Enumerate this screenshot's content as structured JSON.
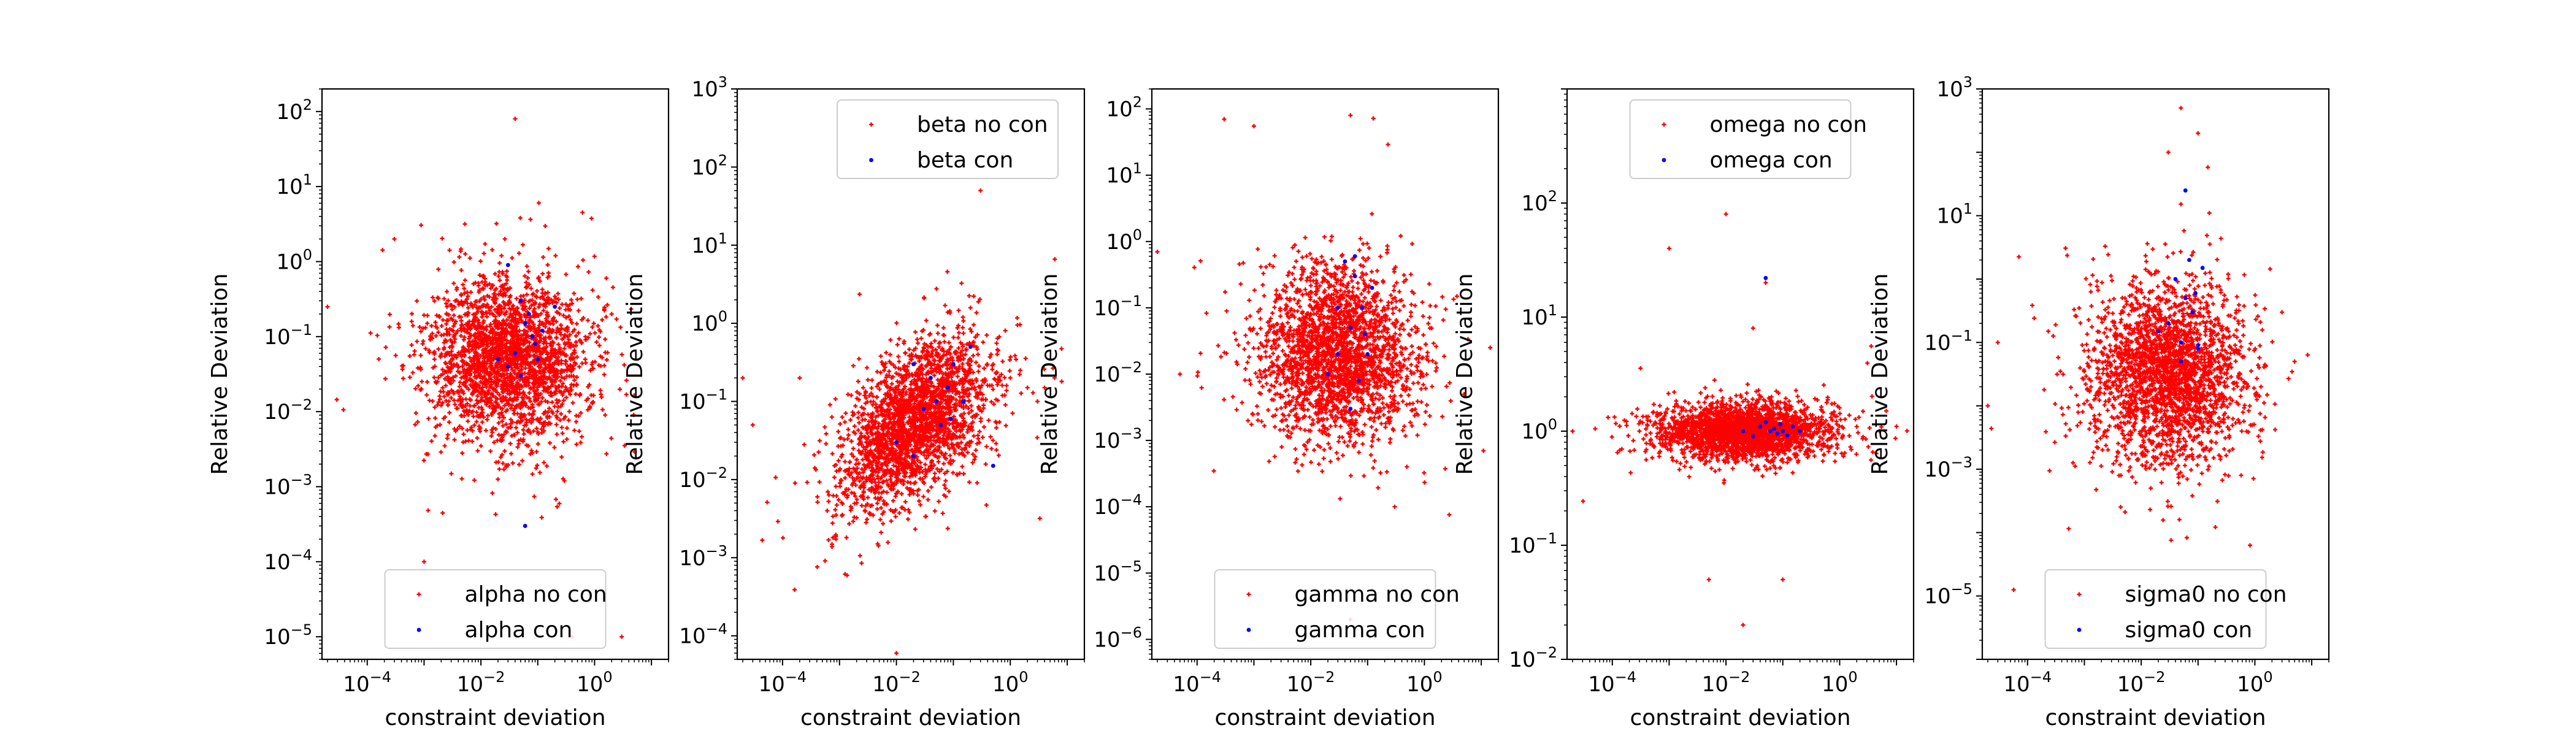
{
  "chart_data": [
    {
      "type": "scatter",
      "xlabel": "constraint deviation",
      "ylabel": "Relative Deviation",
      "x_scale": "log",
      "y_scale": "log",
      "xlim": [
        1.6e-05,
        20
      ],
      "ylim": [
        5e-06,
        200
      ],
      "xticks": [
        {
          "v": 0.0001,
          "b": "10",
          "e": "−4"
        },
        {
          "v": 0.01,
          "b": "10",
          "e": "−2"
        },
        {
          "v": 1,
          "b": "10",
          "e": "0"
        }
      ],
      "yticks": [
        {
          "v": 1e-05,
          "b": "10",
          "e": "−5"
        },
        {
          "v": 0.0001,
          "b": "10",
          "e": "−4"
        },
        {
          "v": 0.001,
          "b": "10",
          "e": "−3"
        },
        {
          "v": 0.01,
          "b": "10",
          "e": "−2"
        },
        {
          "v": 0.1,
          "b": "10",
          "e": "−1"
        },
        {
          "v": 1,
          "b": "10",
          "e": "0"
        },
        {
          "v": 10,
          "b": "10",
          "e": "1"
        },
        {
          "v": 100,
          "b": "10",
          "e": "2"
        }
      ],
      "legend_loc": "lower-center",
      "cloud": {
        "cx": 0.03,
        "cy": 0.05,
        "sx": 0.7,
        "sy": 0.55,
        "rho": 0.0,
        "n": 2400,
        "tail": 0.02
      },
      "series": [
        {
          "name": "alpha no con",
          "color": "#ff0000",
          "marker": "plus",
          "extra_points": [
            [
              0.04,
              80
            ],
            [
              0.0003,
              2
            ],
            [
              2e-05,
              0.25
            ],
            [
              0.4,
              1e-05
            ],
            [
              3,
              1e-05
            ],
            [
              2,
              0.2
            ],
            [
              0.001,
              0.0001
            ]
          ]
        },
        {
          "name": "alpha con",
          "color": "#0000ff",
          "marker": "dot",
          "points": [
            [
              0.05,
              0.3
            ],
            [
              0.06,
              0.15
            ],
            [
              0.08,
              0.1
            ],
            [
              0.04,
              0.06
            ],
            [
              0.1,
              0.05
            ],
            [
              0.03,
              0.04
            ],
            [
              0.07,
              0.2
            ],
            [
              0.09,
              0.08
            ],
            [
              0.02,
              0.05
            ],
            [
              0.12,
              0.12
            ],
            [
              0.05,
              0.03
            ],
            [
              0.2,
              0.25
            ],
            [
              0.06,
              0.0003
            ],
            [
              0.03,
              0.9
            ]
          ]
        }
      ]
    },
    {
      "type": "scatter",
      "xlabel": "constraint deviation",
      "ylabel": "Relative Deviation",
      "x_scale": "log",
      "y_scale": "log",
      "xlim": [
        1.6e-05,
        20
      ],
      "ylim": [
        5e-05,
        1000
      ],
      "xticks": [
        {
          "v": 0.0001,
          "b": "10",
          "e": "−4"
        },
        {
          "v": 0.01,
          "b": "10",
          "e": "−2"
        },
        {
          "v": 1,
          "b": "10",
          "e": "0"
        }
      ],
      "yticks": [
        {
          "v": 0.0001,
          "b": "10",
          "e": "−4"
        },
        {
          "v": 0.001,
          "b": "10",
          "e": "−3"
        },
        {
          "v": 0.01,
          "b": "10",
          "e": "−2"
        },
        {
          "v": 0.1,
          "b": "10",
          "e": "−1"
        },
        {
          "v": 1,
          "b": "10",
          "e": "0"
        },
        {
          "v": 10,
          "b": "10",
          "e": "1"
        },
        {
          "v": 100,
          "b": "10",
          "e": "2"
        },
        {
          "v": 1000,
          "b": "10",
          "e": "3"
        }
      ],
      "legend_loc": "upper-right",
      "cloud": {
        "cx": 0.02,
        "cy": 0.05,
        "sx": 0.65,
        "sy": 0.55,
        "rho": 0.55,
        "n": 2400,
        "tail": 0.02
      },
      "series": [
        {
          "name": "beta no con",
          "color": "#ff0000",
          "marker": "plus",
          "extra_points": [
            [
              0.3,
              0.15
            ],
            [
              1,
              0.2
            ],
            [
              2,
              0.15
            ],
            [
              4,
              0.15
            ],
            [
              8,
              0.18
            ],
            [
              0.5,
              0.3
            ],
            [
              1.5,
              0.25
            ],
            [
              3,
              0.1
            ],
            [
              6,
              0.2
            ],
            [
              0.8,
              0.12
            ],
            [
              3e-05,
              0.05
            ],
            [
              2e-05,
              0.2
            ],
            [
              0.01,
              6e-05
            ],
            [
              0.3,
              50
            ]
          ]
        },
        {
          "name": "beta con",
          "color": "#0000ff",
          "marker": "dot",
          "points": [
            [
              0.02,
              0.3
            ],
            [
              0.04,
              0.2
            ],
            [
              0.05,
              0.1
            ],
            [
              0.1,
              0.3
            ],
            [
              0.06,
              0.05
            ],
            [
              0.08,
              0.15
            ],
            [
              0.03,
              0.08
            ],
            [
              0.09,
              0.06
            ],
            [
              0.15,
              0.1
            ],
            [
              0.01,
              0.03
            ],
            [
              0.02,
              0.02
            ],
            [
              0.5,
              0.015
            ],
            [
              0.2,
              0.5
            ]
          ]
        }
      ]
    },
    {
      "type": "scatter",
      "xlabel": "constraint deviation",
      "ylabel": "Relative Deviation",
      "x_scale": "log",
      "y_scale": "log",
      "xlim": [
        1.6e-05,
        20
      ],
      "ylim": [
        5e-07,
        200
      ],
      "xticks": [
        {
          "v": 0.0001,
          "b": "10",
          "e": "−4"
        },
        {
          "v": 0.01,
          "b": "10",
          "e": "−2"
        },
        {
          "v": 1,
          "b": "10",
          "e": "0"
        }
      ],
      "yticks": [
        {
          "v": 1e-06,
          "b": "10",
          "e": "−6"
        },
        {
          "v": 1e-05,
          "b": "10",
          "e": "−5"
        },
        {
          "v": 0.0001,
          "b": "10",
          "e": "−4"
        },
        {
          "v": 0.001,
          "b": "10",
          "e": "−3"
        },
        {
          "v": 0.01,
          "b": "10",
          "e": "−2"
        },
        {
          "v": 0.1,
          "b": "10",
          "e": "−1"
        },
        {
          "v": 1,
          "b": "10",
          "e": "0"
        },
        {
          "v": 10,
          "b": "10",
          "e": "1"
        },
        {
          "v": 100,
          "b": "10",
          "e": "2"
        }
      ],
      "legend_loc": "lower-center",
      "cloud": {
        "cx": 0.03,
        "cy": 0.02,
        "sx": 0.7,
        "sy": 0.65,
        "rho": 0.0,
        "n": 2400,
        "tail": 0.02
      },
      "series": [
        {
          "name": "gamma no con",
          "color": "#ff0000",
          "marker": "plus",
          "extra_points": [
            [
              0.0003,
              70
            ],
            [
              0.001,
              55
            ],
            [
              0.05,
              80
            ],
            [
              5e-05,
              0.01
            ],
            [
              2e-05,
              0.7
            ],
            [
              5,
              0.005
            ],
            [
              0.05,
              2e-06
            ],
            [
              0.3,
              0.0001
            ]
          ]
        },
        {
          "name": "gamma con",
          "color": "#0000ff",
          "marker": "dot",
          "points": [
            [
              0.04,
              0.5
            ],
            [
              0.06,
              0.3
            ],
            [
              0.08,
              0.1
            ],
            [
              0.05,
              0.05
            ],
            [
              0.1,
              0.02
            ],
            [
              0.03,
              0.02
            ],
            [
              0.07,
              0.008
            ],
            [
              0.09,
              0.04
            ],
            [
              0.02,
              0.01
            ],
            [
              0.12,
              0.2
            ],
            [
              0.05,
              0.003
            ],
            [
              0.06,
              0.6
            ],
            [
              0.03,
              0.1
            ]
          ]
        }
      ]
    },
    {
      "type": "scatter",
      "xlabel": "constraint deviation",
      "ylabel": "Relative Deviation",
      "x_scale": "log",
      "y_scale": "log",
      "xlim": [
        1.6e-05,
        20
      ],
      "ylim": [
        0.01,
        1000
      ],
      "xticks": [
        {
          "v": 0.0001,
          "b": "10",
          "e": "−4"
        },
        {
          "v": 0.01,
          "b": "10",
          "e": "−2"
        },
        {
          "v": 1,
          "b": "10",
          "e": "0"
        }
      ],
      "yticks": [
        {
          "v": 0.01,
          "b": "10",
          "e": "−2"
        },
        {
          "v": 0.1,
          "b": "10",
          "e": "−1"
        },
        {
          "v": 1,
          "b": "10",
          "e": "0"
        },
        {
          "v": 10,
          "b": "10",
          "e": "1"
        },
        {
          "v": 100,
          "b": "10",
          "e": "2"
        }
      ],
      "legend_loc": "upper-center",
      "cloud": {
        "cx": 0.02,
        "cy": 1.0,
        "sx": 0.75,
        "sy": 0.12,
        "rho": 0.0,
        "n": 2400,
        "tail": 0.03
      },
      "series": [
        {
          "name": "omega no con",
          "color": "#ff0000",
          "marker": "plus",
          "extra_points": [
            [
              0.01,
              80
            ],
            [
              0.03,
              8
            ],
            [
              0.05,
              20
            ],
            [
              0.0003,
              1
            ],
            [
              2e-05,
              1
            ],
            [
              5e-05,
              1.05
            ],
            [
              5,
              1
            ],
            [
              10,
              1.1
            ],
            [
              0.02,
              0.02
            ],
            [
              0.005,
              0.05
            ],
            [
              0.1,
              0.05
            ],
            [
              0.001,
              40
            ]
          ]
        },
        {
          "name": "omega con",
          "color": "#0000ff",
          "marker": "dot",
          "points": [
            [
              0.04,
              1.1
            ],
            [
              0.06,
              1.0
            ],
            [
              0.08,
              0.95
            ],
            [
              0.05,
              1.2
            ],
            [
              0.1,
              1.0
            ],
            [
              0.03,
              0.9
            ],
            [
              0.07,
              1.05
            ],
            [
              0.09,
              1.15
            ],
            [
              0.02,
              1.0
            ],
            [
              0.12,
              0.92
            ],
            [
              0.05,
              22
            ],
            [
              0.15,
              1.1
            ],
            [
              0.2,
              1.0
            ]
          ]
        }
      ]
    },
    {
      "type": "scatter",
      "xlabel": "constraint deviation",
      "ylabel": "Relative Deviation",
      "x_scale": "log",
      "y_scale": "log",
      "xlim": [
        1.6e-05,
        20
      ],
      "ylim": [
        1e-06,
        1000
      ],
      "xticks": [
        {
          "v": 0.0001,
          "b": "10",
          "e": "−4"
        },
        {
          "v": 0.01,
          "b": "10",
          "e": "−2"
        },
        {
          "v": 1,
          "b": "10",
          "e": "0"
        }
      ],
      "yticks": [
        {
          "v": 1e-05,
          "b": "10",
          "e": "−5"
        },
        {
          "v": 0.001,
          "b": "10",
          "e": "−3"
        },
        {
          "v": 0.1,
          "b": "10",
          "e": "−1"
        },
        {
          "v": 10,
          "b": "10",
          "e": "1"
        },
        {
          "v": 1000,
          "b": "10",
          "e": "3"
        }
      ],
      "legend_loc": "lower-center",
      "cloud": {
        "cx": 0.03,
        "cy": 0.03,
        "sx": 0.7,
        "sy": 0.7,
        "rho": 0.0,
        "n": 2400,
        "tail": 0.02
      },
      "series": [
        {
          "name": "sigma0 no con",
          "color": "#ff0000",
          "marker": "plus",
          "extra_points": [
            [
              0.05,
              500
            ],
            [
              0.1,
              200
            ],
            [
              0.03,
              100
            ],
            [
              3e-05,
              0.1
            ],
            [
              2e-05,
              0.01
            ],
            [
              5,
              0.05
            ],
            [
              0.02,
              1e-05
            ],
            [
              0.05,
              3e-06
            ],
            [
              3,
              0.3
            ]
          ]
        },
        {
          "name": "sigma0 con",
          "color": "#0000ff",
          "marker": "dot",
          "points": [
            [
              0.04,
              1.0
            ],
            [
              0.06,
              0.5
            ],
            [
              0.08,
              0.3
            ],
            [
              0.05,
              0.1
            ],
            [
              0.1,
              0.08
            ],
            [
              0.03,
              0.2
            ],
            [
              0.07,
              2
            ],
            [
              0.09,
              0.6
            ],
            [
              0.02,
              0.15
            ],
            [
              0.12,
              1.5
            ],
            [
              0.05,
              0.05
            ],
            [
              0.06,
              25
            ],
            [
              0.1,
              0.09
            ]
          ]
        }
      ]
    }
  ]
}
